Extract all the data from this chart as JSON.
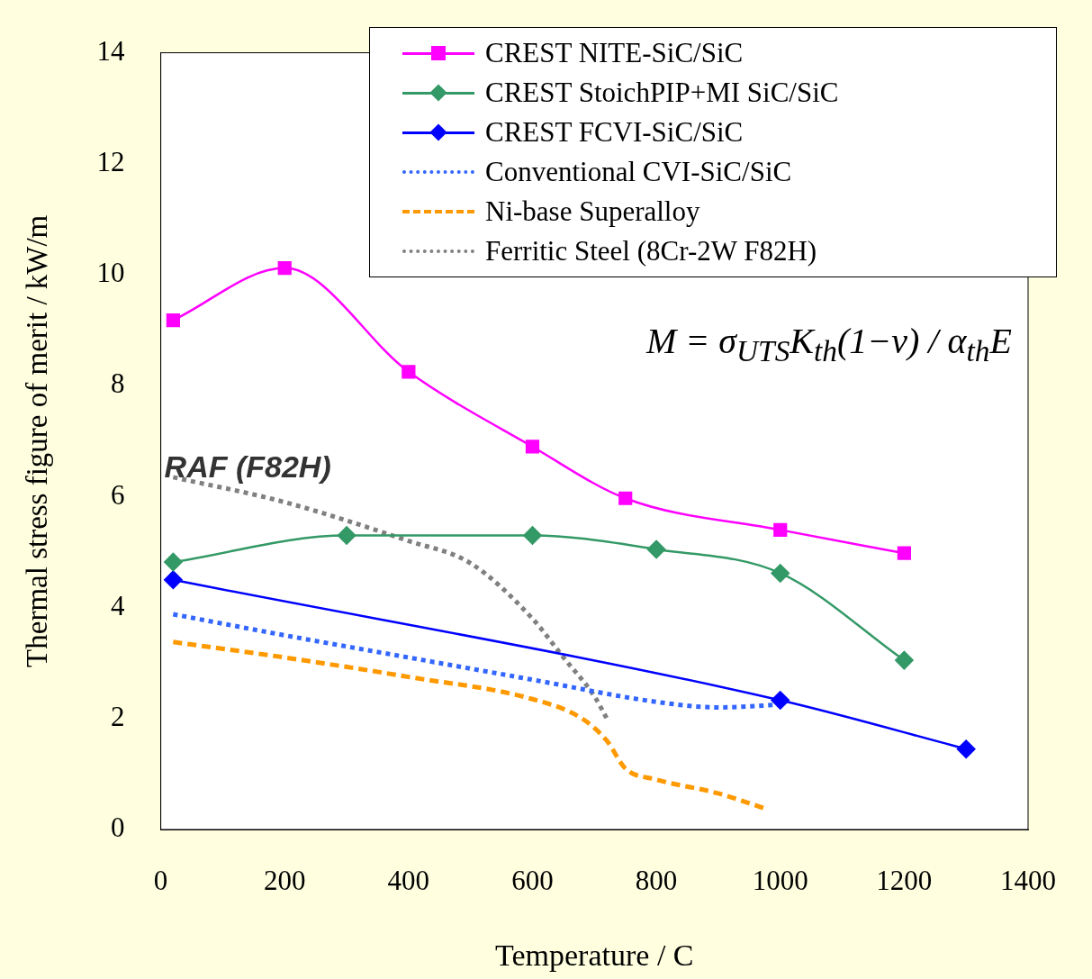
{
  "chart_data": {
    "type": "line",
    "xlabel": "Temperature / C",
    "ylabel": "Thermal stress figure of merit / kW/m",
    "xlim": [
      0,
      1400
    ],
    "xticks": [
      0,
      200,
      400,
      600,
      800,
      1000,
      1200,
      1400
    ],
    "ylim": [
      0,
      14
    ],
    "yticks": [
      0,
      2,
      4,
      6,
      8,
      10,
      12,
      14
    ],
    "grid": false,
    "legend": "top right",
    "series": [
      {
        "name": "CREST NITE-SiC/SiC",
        "color": "#ff00ff",
        "marker": "square",
        "line_style": "solid",
        "x": [
          20,
          200,
          400,
          600,
          750,
          1000,
          1200
        ],
        "values": [
          9.18,
          10.12,
          8.25,
          6.9,
          5.97,
          5.4,
          4.98
        ]
      },
      {
        "name": "CREST StoichPIP+MI SiC/SiC",
        "color": "#339966",
        "marker": "diamond",
        "line_style": "solid",
        "x": [
          20,
          300,
          600,
          800,
          1000,
          1200
        ],
        "values": [
          4.82,
          5.3,
          5.3,
          5.05,
          4.62,
          3.05
        ]
      },
      {
        "name": "CREST FCVI-SiC/SiC",
        "color": "#0000ff",
        "marker": "diamond",
        "line_style": "solid",
        "x": [
          20,
          1000,
          1300
        ],
        "values": [
          4.5,
          2.33,
          1.45
        ]
      },
      {
        "name": "Conventional CVI-SiC/SiC",
        "color": "#3366ff",
        "marker": "none",
        "line_style": "dotted",
        "x": [
          20,
          200,
          400,
          600,
          800,
          900,
          1000
        ],
        "values": [
          3.88,
          3.5,
          3.1,
          2.7,
          2.3,
          2.2,
          2.25
        ]
      },
      {
        "name": "Ni-base Superalloy",
        "color": "#ff9900",
        "marker": "none",
        "line_style": "dashed",
        "x": [
          20,
          200,
          400,
          600,
          680,
          720,
          750,
          800,
          900,
          975
        ],
        "values": [
          3.38,
          3.1,
          2.75,
          2.35,
          2.0,
          1.6,
          1.1,
          0.9,
          0.65,
          0.38
        ]
      },
      {
        "name": "Ferritic Steel (8Cr-2W F82H)",
        "color": "#808080",
        "marker": "none",
        "line_style": "dotted",
        "x": [
          20,
          200,
          400,
          500,
          600,
          650,
          700,
          720
        ],
        "values": [
          6.35,
          5.9,
          5.2,
          4.8,
          3.8,
          3.1,
          2.4,
          2.0
        ]
      }
    ],
    "annotations": [
      "RAF (F82H)",
      "M = σ$_{UTS}$K$_{th}$(1−ν) / α$_{th}$E"
    ]
  }
}
